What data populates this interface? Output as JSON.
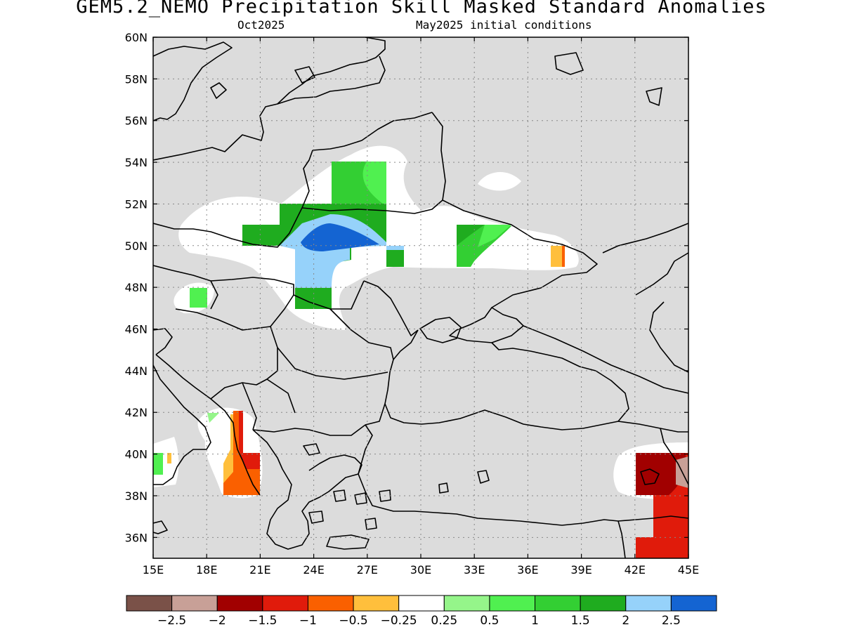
{
  "title": "GEM5.2_NEMO Precipitation Skill Masked Standard Anomalies",
  "subtitle_left": "Oct2025",
  "subtitle_right": "May2025 initial conditions",
  "map": {
    "lon_range": [
      15,
      45
    ],
    "lat_range": [
      35,
      60
    ],
    "lon_ticks": [
      "15E",
      "18E",
      "21E",
      "24E",
      "27E",
      "30E",
      "33E",
      "36E",
      "39E",
      "42E",
      "45E"
    ],
    "lat_ticks": [
      "60N",
      "58N",
      "56N",
      "54N",
      "52N",
      "50N",
      "48N",
      "46N",
      "44N",
      "42N",
      "40N",
      "38N",
      "36N"
    ],
    "masked_color": "#dcdcdc",
    "land_boundary_color": "#000000"
  },
  "colorbar": {
    "colors": [
      "#7a5148",
      "#c8a097",
      "#a10000",
      "#e01b0b",
      "#fa6000",
      "#ffbf3c",
      "#ffffff",
      "#95f58a",
      "#50f050",
      "#33cf33",
      "#1fac1f",
      "#96d2fa",
      "#1464d2"
    ],
    "labels": [
      "−2.5",
      "−2",
      "−1.5",
      "−1",
      "−0.5",
      "−0.25",
      "0.25",
      "0.5",
      "1",
      "1.5",
      "2",
      "2.5"
    ]
  }
}
